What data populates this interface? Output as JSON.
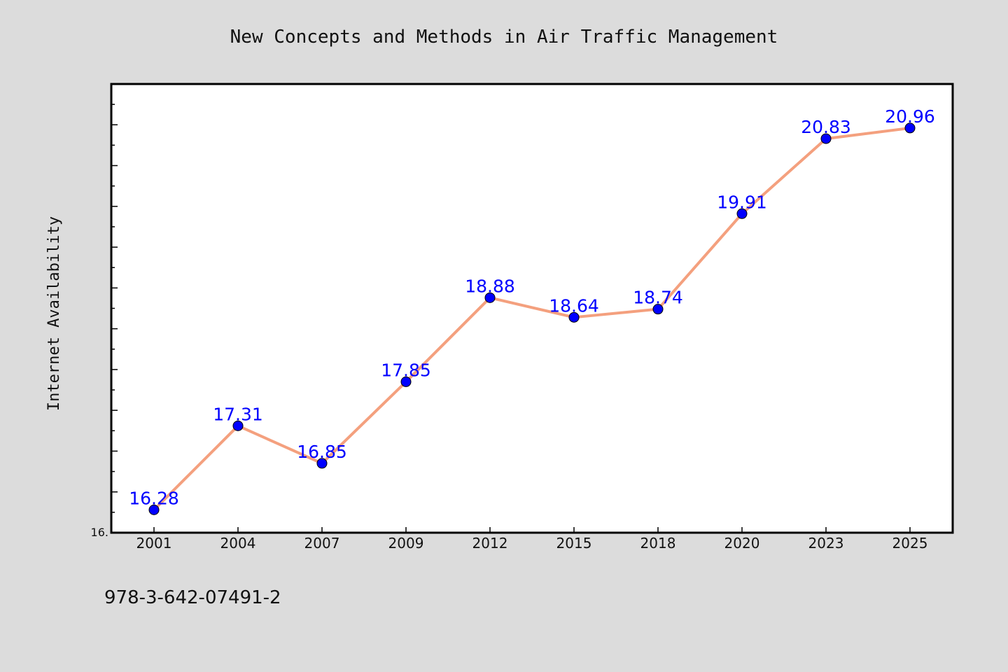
{
  "chart_data": {
    "type": "line",
    "title": "New Concepts and Methods in Air Traffic Management",
    "xlabel": "",
    "ylabel": "Internet Availability",
    "categories": [
      "2001",
      "2004",
      "2007",
      "2009",
      "2012",
      "2015",
      "2018",
      "2020",
      "2023",
      "2025"
    ],
    "series": [
      {
        "values": [
          16.28,
          17.31,
          16.85,
          17.85,
          18.88,
          18.64,
          18.74,
          19.91,
          20.83,
          20.96
        ]
      }
    ],
    "data_labels": [
      "16.28",
      "17.31",
      "16.85",
      "17.85",
      "18.88",
      "18.64",
      "18.74",
      "19.91",
      "20.83",
      "20.96"
    ],
    "ylim": [
      16.0,
      21.5
    ],
    "ytick_label": "16.",
    "grid": false,
    "legend": "none",
    "colors": {
      "line": "#f4a07e",
      "marker": "#0000ff",
      "marker_edge": "#000000",
      "data_label": "#0000ff",
      "plot_background": "#ffffff",
      "figure_background": "#dcdcdc"
    }
  },
  "footnote": "978-3-642-07491-2"
}
